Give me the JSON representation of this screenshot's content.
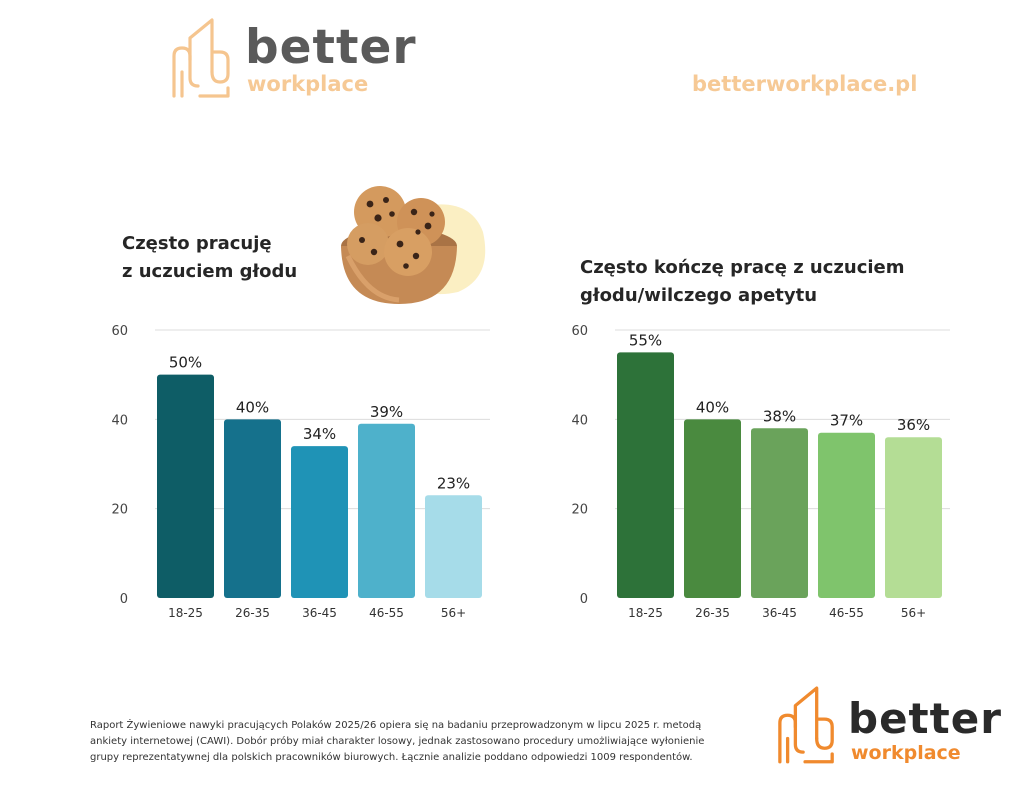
{
  "brand": {
    "name_main": "better",
    "name_sub": "workplace",
    "website": "betterworkplace.pl",
    "colors": {
      "faint": "#f6c995",
      "orange": "#f08a2e",
      "dark": "#5a5a5a",
      "black": "#2a2a2a"
    }
  },
  "chart_data": [
    {
      "type": "bar",
      "title_lines": [
        "Często pracuję",
        "z uczuciem głodu"
      ],
      "categories": [
        "18-25",
        "26-35",
        "36-45",
        "46-55",
        "56+"
      ],
      "values": [
        50,
        40,
        34,
        39,
        23
      ],
      "labels": [
        "50%",
        "40%",
        "34%",
        "39%",
        "23%"
      ],
      "colors": [
        "#0e5d66",
        "#15718c",
        "#1f93b6",
        "#4eb1cb",
        "#a6dce9"
      ],
      "yticks": [
        0,
        20,
        40,
        60
      ],
      "ylim": [
        0,
        60
      ],
      "grid": true
    },
    {
      "type": "bar",
      "title_lines": [
        "Często kończę pracę z uczuciem",
        "głodu/wilczego apetytu"
      ],
      "categories": [
        "18-25",
        "26-35",
        "36-45",
        "46-55",
        "56+"
      ],
      "values": [
        55,
        40,
        38,
        37,
        36
      ],
      "labels": [
        "55%",
        "40%",
        "38%",
        "37%",
        "36%"
      ],
      "colors": [
        "#2d7239",
        "#4a8a3f",
        "#6aa35b",
        "#7fc46c",
        "#b4dd95"
      ],
      "yticks": [
        0,
        20,
        40,
        60
      ],
      "ylim": [
        0,
        60
      ],
      "grid": true
    }
  ],
  "footnote": [
    "Raport Żywieniowe nawyki pracujących Polaków 2025/26 opiera się na badaniu przeprowadzonym w lipcu 2025 r. metodą",
    "ankiety internetowej (CAWI). Dobór próby miał charakter losowy, jednak zastosowano procedury umożliwiające wyłonienie",
    "grupy reprezentatywnej dla polskich pracowników biurowych. Łącznie analizie poddano odpowiedzi 1009 respondentów."
  ]
}
